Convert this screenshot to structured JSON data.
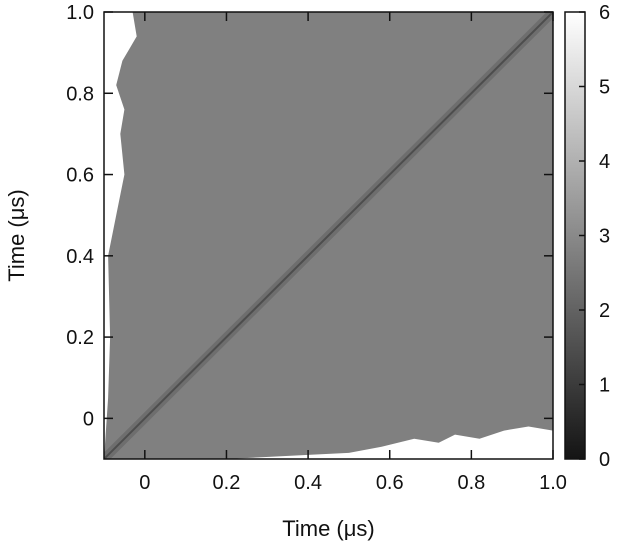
{
  "chart_data": {
    "type": "heatmap",
    "title": "",
    "xlabel": "Time (μs)",
    "ylabel": "Time (μs)",
    "xlim": [
      -0.1,
      1.0
    ],
    "ylim": [
      -0.1,
      1.0
    ],
    "x_ticks": [
      {
        "value": 0,
        "label": "0"
      },
      {
        "value": 0.2,
        "label": "0.2"
      },
      {
        "value": 0.4,
        "label": "0.4"
      },
      {
        "value": 0.6,
        "label": "0.6"
      },
      {
        "value": 0.8,
        "label": "0.8"
      },
      {
        "value": 1.0,
        "label": "1.0"
      }
    ],
    "y_ticks": [
      {
        "value": 0,
        "label": "0"
      },
      {
        "value": 0.2,
        "label": "0.2"
      },
      {
        "value": 0.4,
        "label": "0.4"
      },
      {
        "value": 0.6,
        "label": "0.6"
      },
      {
        "value": 0.8,
        "label": "0.8"
      },
      {
        "value": 1.0,
        "label": "1.0"
      }
    ],
    "colorbar": {
      "range": [
        0,
        6
      ],
      "colormap": "grayscale (black to white)",
      "ticks": [
        {
          "value": 0,
          "label": "0"
        },
        {
          "value": 1,
          "label": "1"
        },
        {
          "value": 2,
          "label": "2"
        },
        {
          "value": 3,
          "label": "3"
        },
        {
          "value": 4,
          "label": "4"
        },
        {
          "value": 5,
          "label": "5"
        },
        {
          "value": 6,
          "label": "6"
        }
      ]
    },
    "field": {
      "background_value": 3.5,
      "diagonal_value": 2.7,
      "diagonal_core_value": 1.8,
      "empty_region_value": 6
    },
    "upper_left_boundary": [
      {
        "y": -0.1,
        "x": -0.1
      },
      {
        "y": 0.05,
        "x": -0.09
      },
      {
        "y": 0.2,
        "x": -0.085
      },
      {
        "y": 0.4,
        "x": -0.09
      },
      {
        "y": 0.5,
        "x": -0.07
      },
      {
        "y": 0.6,
        "x": -0.05
      },
      {
        "y": 0.7,
        "x": -0.06
      },
      {
        "y": 0.76,
        "x": -0.05
      },
      {
        "y": 0.82,
        "x": -0.07
      },
      {
        "y": 0.88,
        "x": -0.055
      },
      {
        "y": 0.94,
        "x": -0.02
      },
      {
        "y": 1.0,
        "x": -0.03
      }
    ],
    "lower_right_boundary": [
      {
        "x": 0.2,
        "y": -0.1
      },
      {
        "x": 0.4,
        "y": -0.09
      },
      {
        "x": 0.5,
        "y": -0.085
      },
      {
        "x": 0.58,
        "y": -0.07
      },
      {
        "x": 0.66,
        "y": -0.05
      },
      {
        "x": 0.72,
        "y": -0.06
      },
      {
        "x": 0.76,
        "y": -0.04
      },
      {
        "x": 0.82,
        "y": -0.05
      },
      {
        "x": 0.88,
        "y": -0.03
      },
      {
        "x": 0.94,
        "y": -0.02
      },
      {
        "x": 1.0,
        "y": -0.03
      }
    ],
    "colors": {
      "axis": "#111111",
      "background_field": "#808080",
      "diagonal_band": "#6e6e6e",
      "diagonal_core": "#4d4d4d",
      "empty": "#ffffff"
    }
  }
}
